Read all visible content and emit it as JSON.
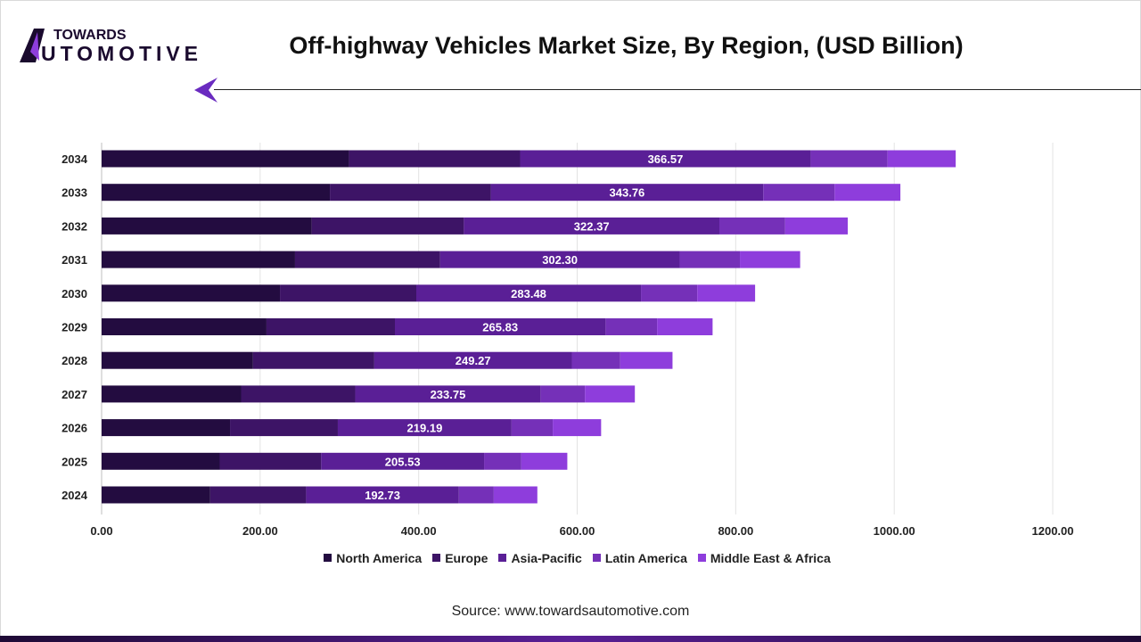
{
  "logo": {
    "line1": "TOWARDS",
    "line2": "AUTOMOTIVE"
  },
  "colors": {
    "North America": "#230c40",
    "Europe": "#3d1466",
    "Asia-Pacific": "#5a1f96",
    "Latin America": "#7530b8",
    "Middle East & Africa": "#8e3ddc"
  },
  "source": "Source: www.towardsautomotive.com",
  "chart_data": {
    "type": "bar",
    "orientation": "horizontal",
    "stacked": true,
    "title": "Off-highway Vehicles Market Size, By Region, (USD Billion)",
    "categories": [
      "2034",
      "2033",
      "2032",
      "2031",
      "2030",
      "2029",
      "2028",
      "2027",
      "2026",
      "2025",
      "2024"
    ],
    "series": [
      {
        "name": "North America",
        "values": [
          312,
          288,
          265,
          244,
          225,
          208,
          191,
          176,
          162,
          149,
          137
        ]
      },
      {
        "name": "Europe",
        "values": [
          216,
          203,
          192,
          183,
          172,
          162,
          153,
          144,
          136,
          128,
          121
        ]
      },
      {
        "name": "Asia-Pacific",
        "values": [
          366.57,
          343.76,
          322.37,
          302.3,
          283.48,
          265.83,
          249.27,
          233.75,
          219.19,
          205.53,
          192.73
        ],
        "labels": [
          "366.57",
          "343.76",
          "322.37",
          "302.30",
          "283.48",
          "265.83",
          "249.27",
          "233.75",
          "219.19",
          "205.53",
          "192.73"
        ]
      },
      {
        "name": "Latin America",
        "values": [
          97,
          90,
          83,
          76,
          71,
          65,
          61,
          56,
          52,
          47,
          44
        ]
      },
      {
        "name": "Middle East & Africa",
        "values": [
          86,
          83,
          79,
          76,
          73,
          70,
          66,
          63,
          61,
          58,
          55
        ]
      }
    ],
    "xlim": [
      0,
      1200
    ],
    "xticks": [
      "0.00",
      "200.00",
      "400.00",
      "600.00",
      "800.00",
      "1000.00",
      "1200.00"
    ],
    "grid": true,
    "legend": "bottom"
  }
}
